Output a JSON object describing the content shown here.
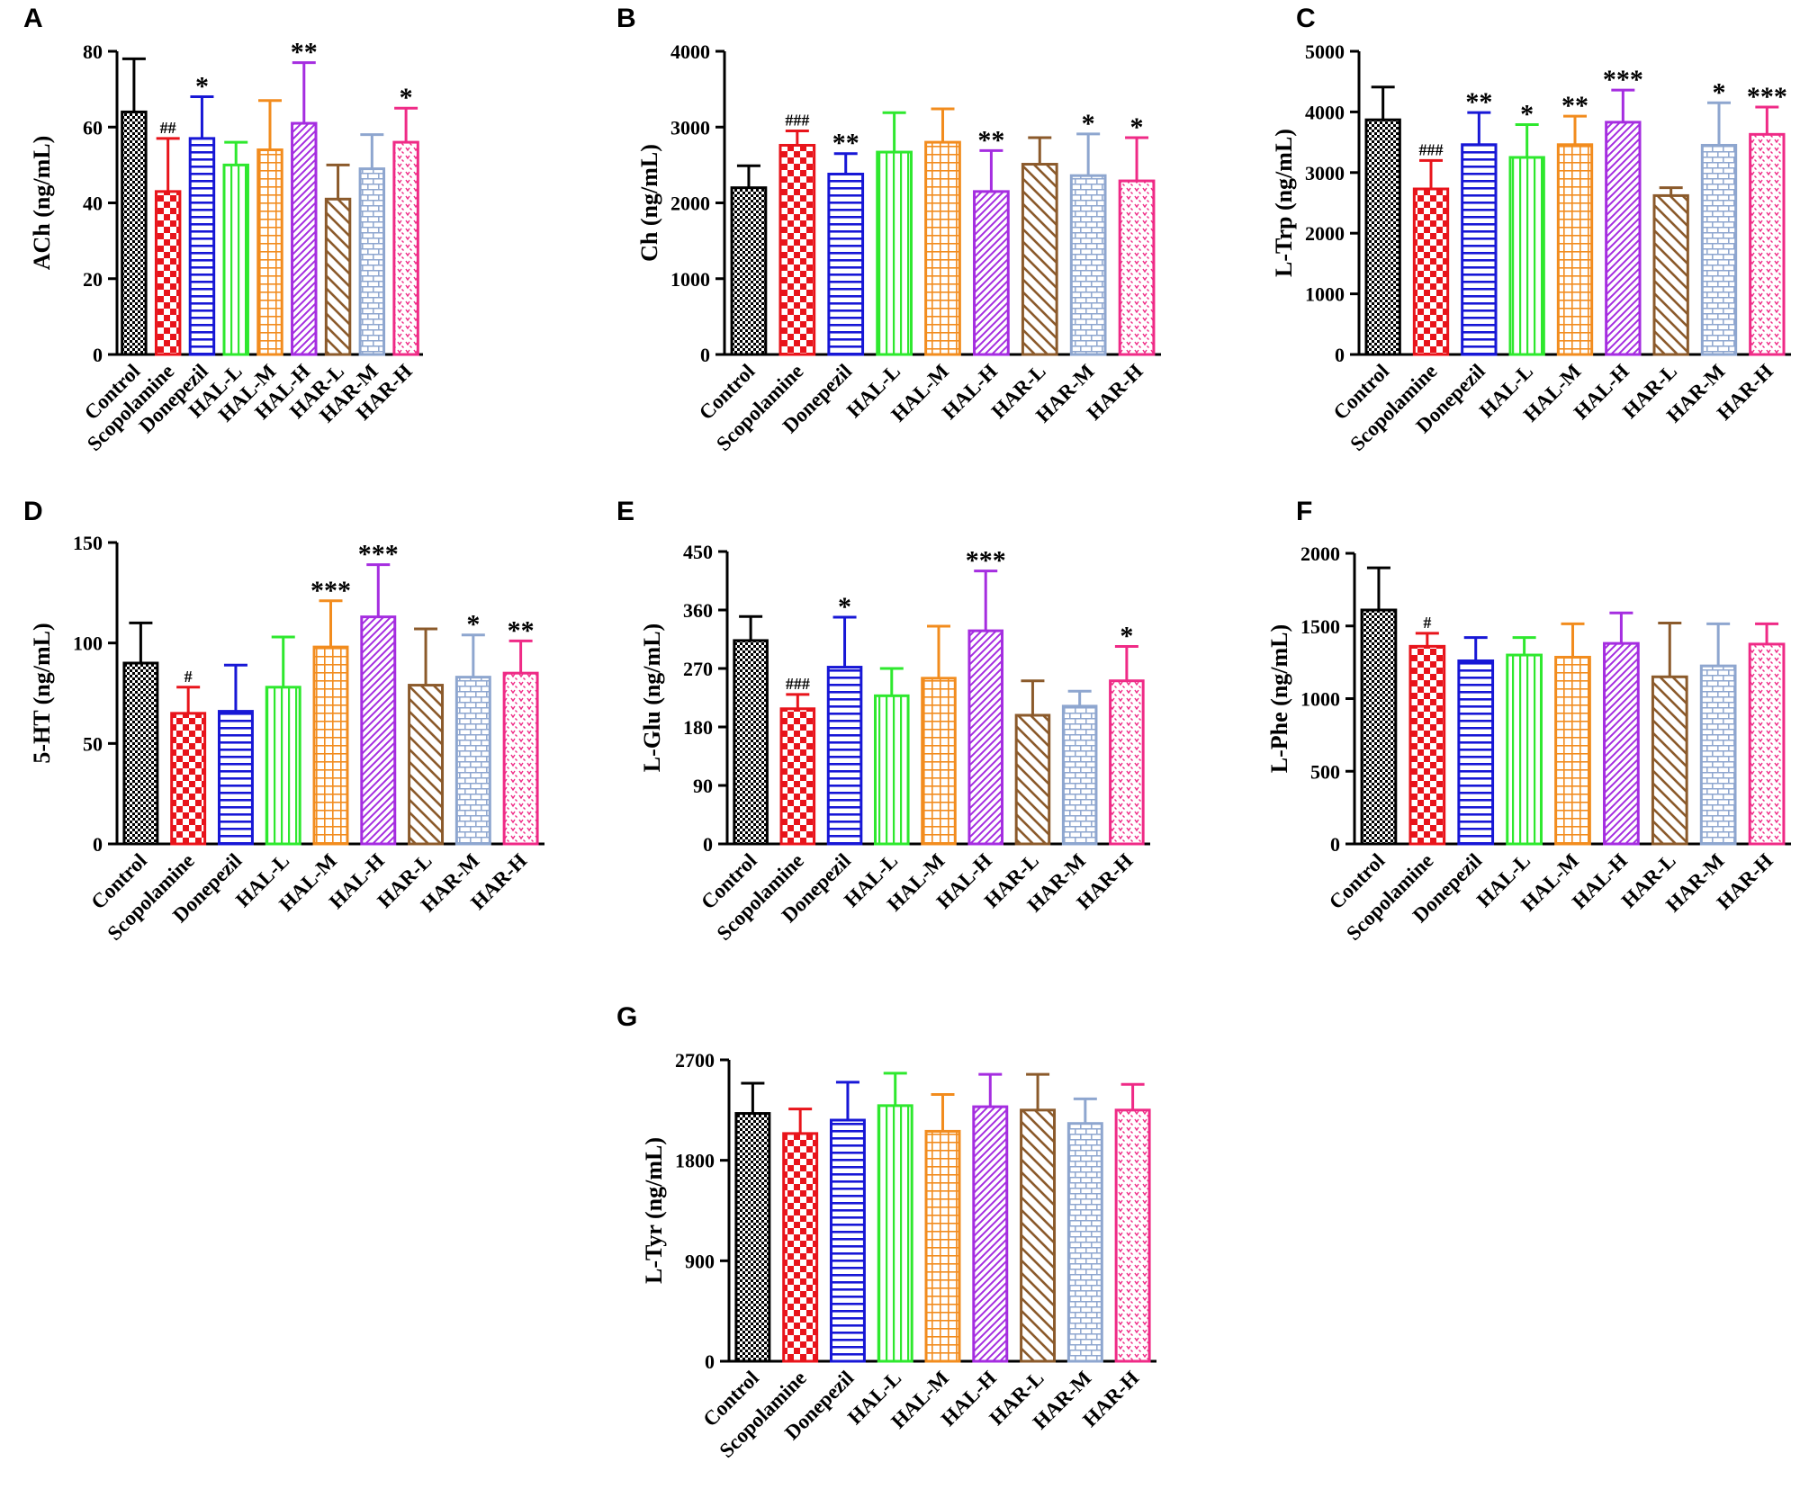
{
  "figure": {
    "categories": [
      "Control",
      "Scopolamine",
      "Donepezil",
      "HAL-L",
      "HAL-M",
      "HAL-H",
      "HAR-L",
      "HAR-M",
      "HAR-H"
    ],
    "colors": [
      "#000000",
      "#e8141b",
      "#1717d6",
      "#2ee82e",
      "#f28c1e",
      "#a52de0",
      "#8b5a2b",
      "#8ea6cf",
      "#ef2a86"
    ],
    "patterns": [
      "checker-fine",
      "checker",
      "hlines",
      "vlines",
      "grid",
      "diag-dense",
      "diag-back",
      "brick",
      "dots"
    ]
  },
  "chart_data": [
    {
      "type": "bar",
      "panel": "A",
      "ylabel": "ACh (ng/mL)",
      "ylim": [
        0,
        80
      ],
      "yticks": [
        0,
        20,
        40,
        60,
        80
      ],
      "ytick_labels": [
        "0",
        "20",
        "40",
        "60",
        "80"
      ],
      "categories": [
        "Control",
        "Scopolamine",
        "Donepezil",
        "HAL-L",
        "HAL-M",
        "HAL-H",
        "HAR-L",
        "HAR-M",
        "HAR-H"
      ],
      "values": [
        64,
        43,
        57,
        50,
        54,
        61,
        41,
        49,
        56
      ],
      "errors": [
        14,
        14,
        11,
        6,
        13,
        16,
        9,
        9,
        9
      ],
      "annotations": [
        "",
        "##",
        "*",
        "",
        "",
        "**",
        "",
        "",
        "*"
      ]
    },
    {
      "type": "bar",
      "panel": "B",
      "ylabel": "Ch (ng/mL)",
      "ylim": [
        0,
        4000
      ],
      "yticks": [
        0,
        1000,
        2000,
        3000,
        4000
      ],
      "ytick_labels": [
        "0",
        "1000",
        "2000",
        "3000",
        "4000"
      ],
      "categories": [
        "Control",
        "Scopolamine",
        "Donepezil",
        "HAL-L",
        "HAL-M",
        "HAL-H",
        "HAR-L",
        "HAR-M",
        "HAR-H"
      ],
      "values": [
        2200,
        2760,
        2380,
        2670,
        2800,
        2150,
        2510,
        2360,
        2290
      ],
      "errors": [
        290,
        190,
        270,
        520,
        440,
        540,
        350,
        550,
        570
      ],
      "annotations": [
        "",
        "###",
        "**",
        "",
        "",
        "**",
        "",
        "*",
        "*"
      ]
    },
    {
      "type": "bar",
      "panel": "C",
      "ylabel": "L-Trp (ng/mL)",
      "ylim": [
        0,
        5000
      ],
      "yticks": [
        0,
        1000,
        2000,
        3000,
        4000,
        5000
      ],
      "ytick_labels": [
        "0",
        "1000",
        "2000",
        "3000",
        "4000",
        "5000"
      ],
      "categories": [
        "Control",
        "Scopolamine",
        "Donepezil",
        "HAL-L",
        "HAL-M",
        "HAL-H",
        "HAR-L",
        "HAR-M",
        "HAR-H"
      ],
      "values": [
        3870,
        2730,
        3460,
        3250,
        3460,
        3830,
        2620,
        3450,
        3630
      ],
      "errors": [
        540,
        470,
        530,
        540,
        470,
        530,
        130,
        700,
        450
      ],
      "annotations": [
        "",
        "###",
        "**",
        "*",
        "**",
        "***",
        "",
        "*",
        "***"
      ]
    },
    {
      "type": "bar",
      "panel": "D",
      "ylabel": "5-HT (ng/mL)",
      "ylim": [
        0,
        150
      ],
      "yticks": [
        0,
        50,
        100,
        150
      ],
      "ytick_labels": [
        "0",
        "50",
        "100",
        "150"
      ],
      "categories": [
        "Control",
        "Scopolamine",
        "Donepezil",
        "HAL-L",
        "HAL-M",
        "HAL-H",
        "HAR-L",
        "HAR-M",
        "HAR-H"
      ],
      "values": [
        90,
        65,
        66,
        78,
        98,
        113,
        79,
        83,
        85
      ],
      "errors": [
        20,
        13,
        23,
        25,
        23,
        26,
        28,
        21,
        16
      ],
      "annotations": [
        "",
        "#",
        "",
        "",
        "***",
        "***",
        "",
        "*",
        "**"
      ]
    },
    {
      "type": "bar",
      "panel": "E",
      "ylabel": "L-Glu (ng/mL)",
      "ylim": [
        0,
        450
      ],
      "yticks": [
        0,
        90,
        180,
        270,
        360,
        450
      ],
      "ytick_labels": [
        "0",
        "90",
        "180",
        "270",
        "360",
        "450"
      ],
      "categories": [
        "Control",
        "Scopolamine",
        "Donepezil",
        "HAL-L",
        "HAL-M",
        "HAL-H",
        "HAR-L",
        "HAR-M",
        "HAR-H"
      ],
      "values": [
        313,
        208,
        272,
        228,
        255,
        328,
        198,
        212,
        251
      ],
      "errors": [
        37,
        22,
        77,
        42,
        80,
        92,
        53,
        23,
        53
      ],
      "annotations": [
        "",
        "###",
        "*",
        "",
        "",
        "***",
        "",
        "",
        "*"
      ]
    },
    {
      "type": "bar",
      "panel": "F",
      "ylabel": "L-Phe (ng/mL)",
      "ylim": [
        0,
        2000
      ],
      "yticks": [
        0,
        500,
        1000,
        1500,
        2000
      ],
      "ytick_labels": [
        "0",
        "500",
        "1000",
        "1500",
        "2000"
      ],
      "categories": [
        "Control",
        "Scopolamine",
        "Donepezil",
        "HAL-L",
        "HAL-M",
        "HAL-H",
        "HAR-L",
        "HAR-M",
        "HAR-H"
      ],
      "values": [
        1610,
        1360,
        1260,
        1300,
        1285,
        1380,
        1150,
        1225,
        1375
      ],
      "errors": [
        290,
        90,
        160,
        120,
        230,
        210,
        370,
        290,
        140
      ],
      "annotations": [
        "",
        "#",
        "",
        "",
        "",
        "",
        "",
        "",
        ""
      ]
    },
    {
      "type": "bar",
      "panel": "G",
      "ylabel": "L-Tyr (ng/mL)",
      "ylim": [
        0,
        2700
      ],
      "yticks": [
        0,
        900,
        1800,
        2700
      ],
      "ytick_labels": [
        "0",
        "900",
        "1800",
        "2700"
      ],
      "categories": [
        "Control",
        "Scopolamine",
        "Donepezil",
        "HAL-L",
        "HAL-M",
        "HAL-H",
        "HAR-L",
        "HAR-M",
        "HAR-H"
      ],
      "values": [
        2220,
        2040,
        2160,
        2290,
        2060,
        2280,
        2250,
        2130,
        2250
      ],
      "errors": [
        270,
        220,
        340,
        290,
        330,
        290,
        320,
        220,
        230
      ],
      "annotations": [
        "",
        "",
        "",
        "",
        "",
        "",
        "",
        "",
        ""
      ]
    }
  ]
}
